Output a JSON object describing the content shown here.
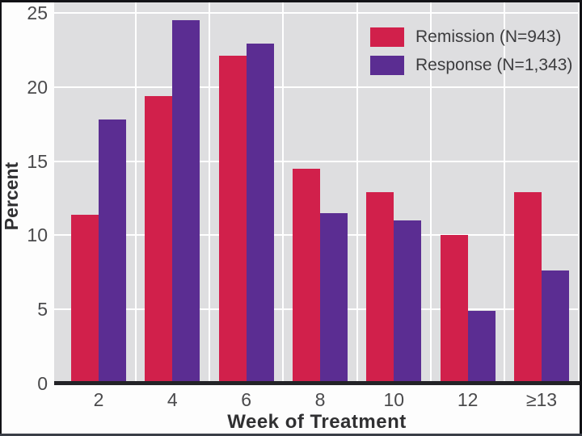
{
  "chart_data": {
    "type": "bar",
    "title": "",
    "xlabel": "Week of Treatment",
    "ylabel": "Percent",
    "categories": [
      "2",
      "4",
      "6",
      "8",
      "10",
      "12",
      "≥13"
    ],
    "series": [
      {
        "name": "Remission (N=943)",
        "color": "#d1204b",
        "values": [
          11.4,
          19.4,
          22.1,
          14.5,
          12.9,
          10.0,
          12.9
        ]
      },
      {
        "name": "Response (N=1,343)",
        "color": "#5b2d92",
        "values": [
          17.8,
          24.5,
          22.9,
          11.5,
          11.0,
          4.9,
          7.6
        ]
      }
    ],
    "y_ticks": [
      0,
      5,
      10,
      15,
      20,
      25
    ],
    "ylim": [
      0,
      25.7
    ],
    "grid": true,
    "legend_position": "top-right"
  },
  "colors": {
    "plot_background": "#dedee0",
    "gridline": "#ffffff",
    "axis_line": "#232327",
    "tick_text": "#4a4a4c",
    "title_text": "#303032",
    "legend_text": "#3c3c3e",
    "border": "#121216",
    "border_bottom": "#3a3e47",
    "page_background": "#fdfdfd"
  }
}
